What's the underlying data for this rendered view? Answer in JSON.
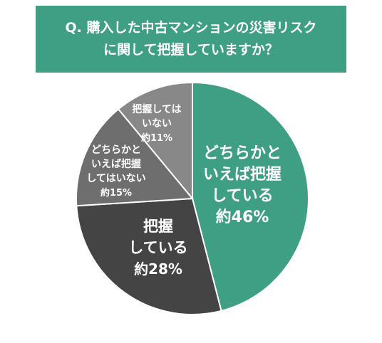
{
  "title_line1": "Q. 購入した中古マンションの災害リスク",
  "title_line2": "に関して把握していますか？",
  "colors": {
    "banner": "#3f9f85"
  },
  "chart_data": {
    "type": "pie",
    "title": "Q. 購入した中古マンションの災害リスクに関して把握していますか？",
    "slices": [
      {
        "label_lines": [
          "どちらかと",
          "いえば把握",
          "している"
        ],
        "value_text": "約46%",
        "value": 46,
        "color": "#3f9f85"
      },
      {
        "label_lines": [
          "把握",
          "している"
        ],
        "value_text": "約28%",
        "value": 28,
        "color": "#444444"
      },
      {
        "label_lines": [
          "どちらかと",
          "いえば把握",
          "してはいない"
        ],
        "value_text": "約15%",
        "value": 15,
        "color": "#6e6e6e"
      },
      {
        "label_lines": [
          "把握しては",
          "いない"
        ],
        "value_text": "約11%",
        "value": 11,
        "color": "#888888"
      }
    ]
  }
}
